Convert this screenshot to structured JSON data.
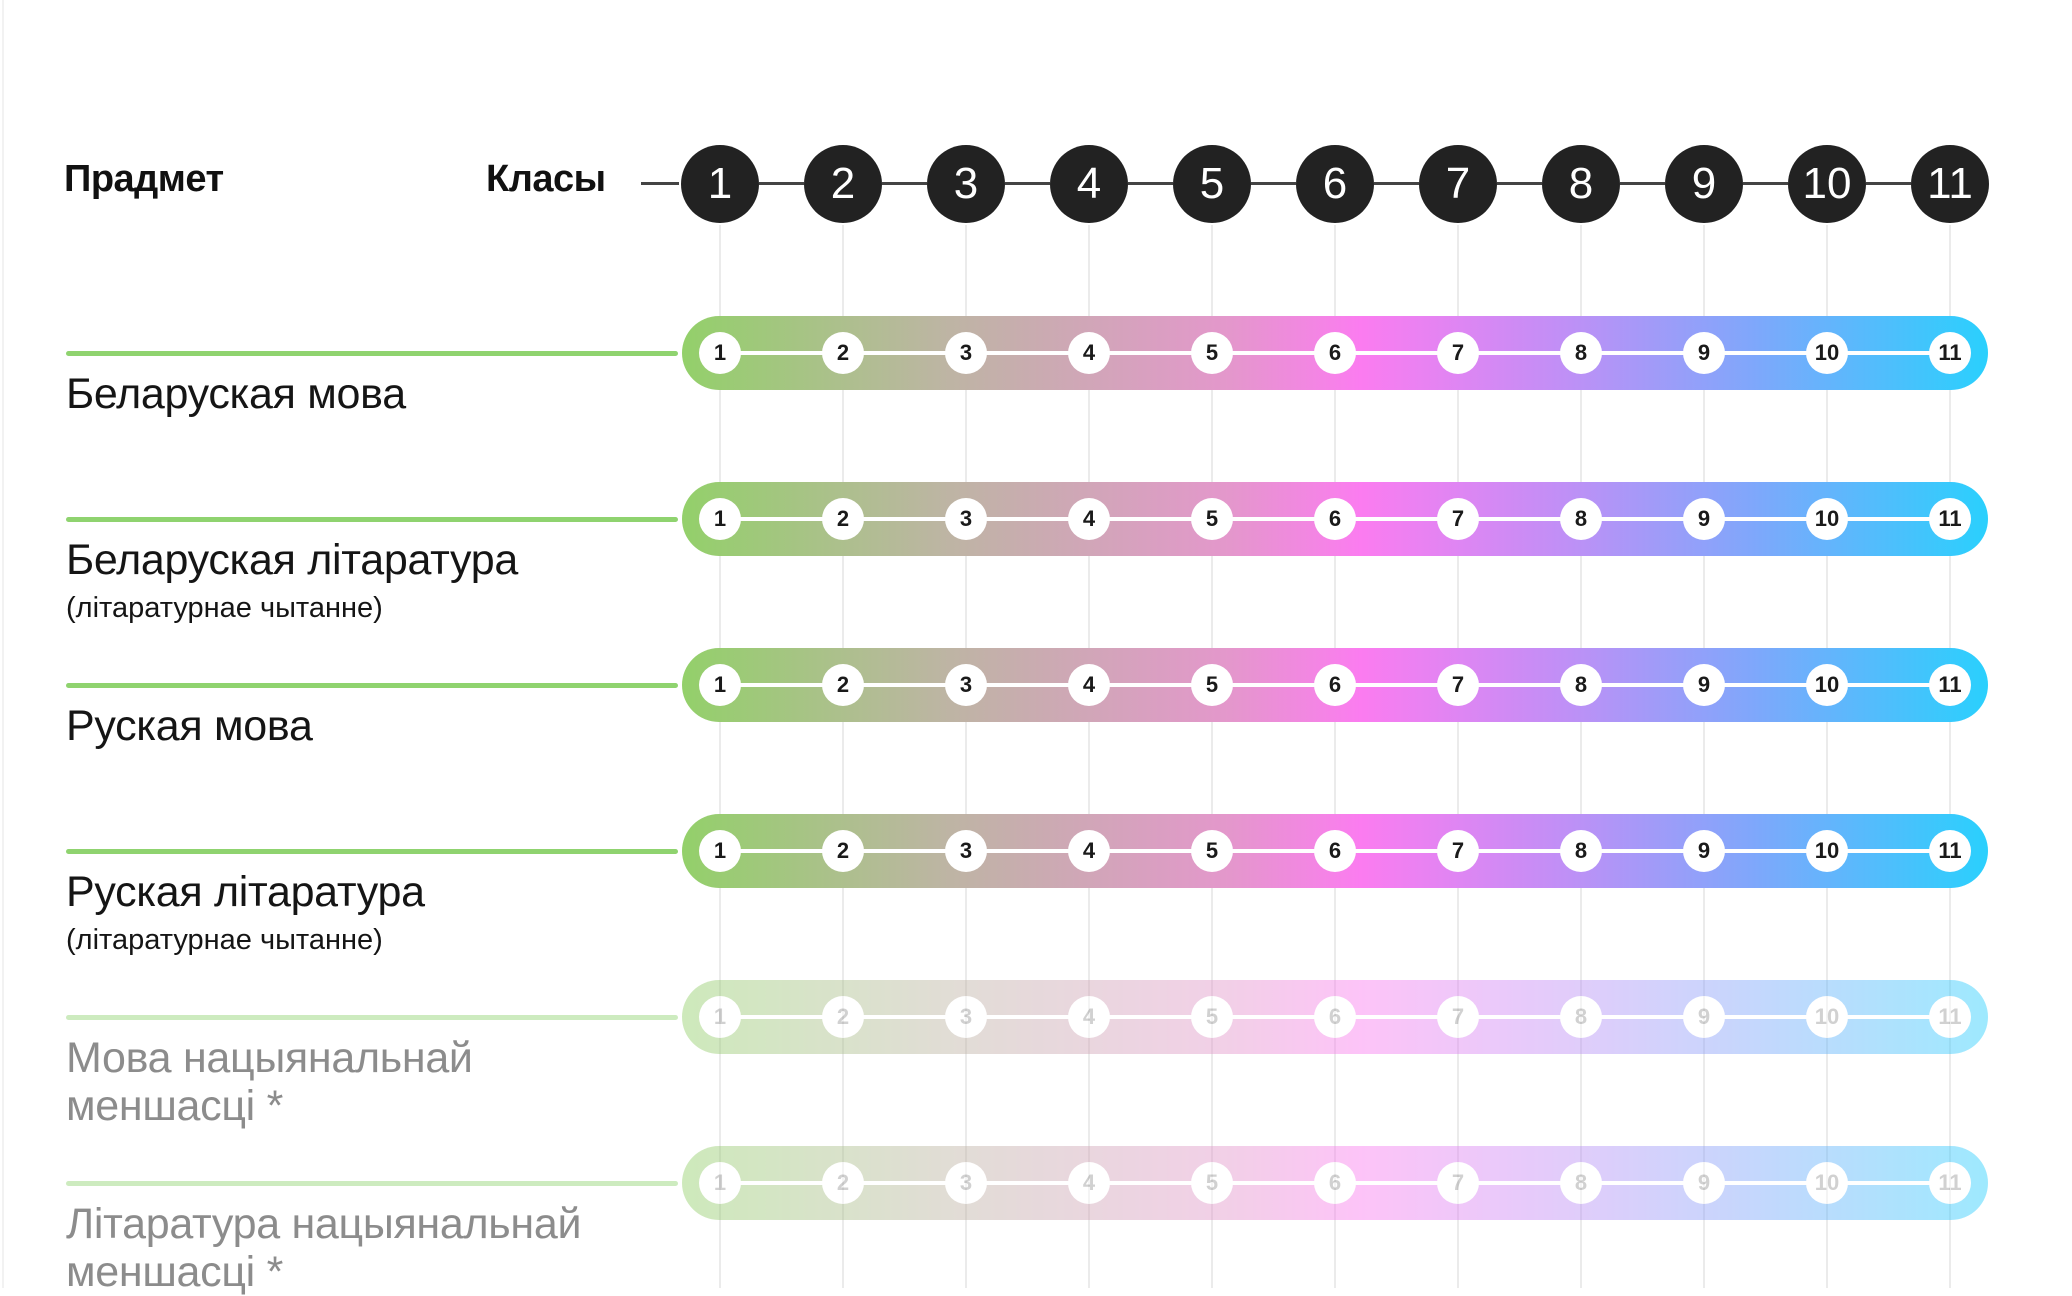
{
  "header": {
    "subject_label": "Прадмет",
    "classes_label": "Класы"
  },
  "classes": [
    "1",
    "2",
    "3",
    "4",
    "5",
    "6",
    "7",
    "8",
    "9",
    "10",
    "11"
  ],
  "colors": {
    "gradient": [
      "#93d06a",
      "#bdb5a3",
      "#e497cc",
      "#fb7cf0",
      "#be90f6",
      "#7fa7fb",
      "#2ad0fd"
    ],
    "lead_line": "#8fd36f",
    "class_circle": "#222222"
  },
  "subjects": [
    {
      "name": "Беларуская мова",
      "sub": "",
      "active": true
    },
    {
      "name": "Беларуская літаратура",
      "sub": "(літаратурнае чытанне)",
      "active": true
    },
    {
      "name": "Руская мова",
      "sub": "",
      "active": true
    },
    {
      "name": "Руская літаратура",
      "sub": "(літаратурнае чытанне)",
      "active": true
    },
    {
      "name": "Мова нацыянальнай\nменшасці *",
      "sub": "",
      "active": false
    },
    {
      "name": "Літаратура нацыянальнай\nменшасці *",
      "sub": "",
      "active": false
    }
  ]
}
